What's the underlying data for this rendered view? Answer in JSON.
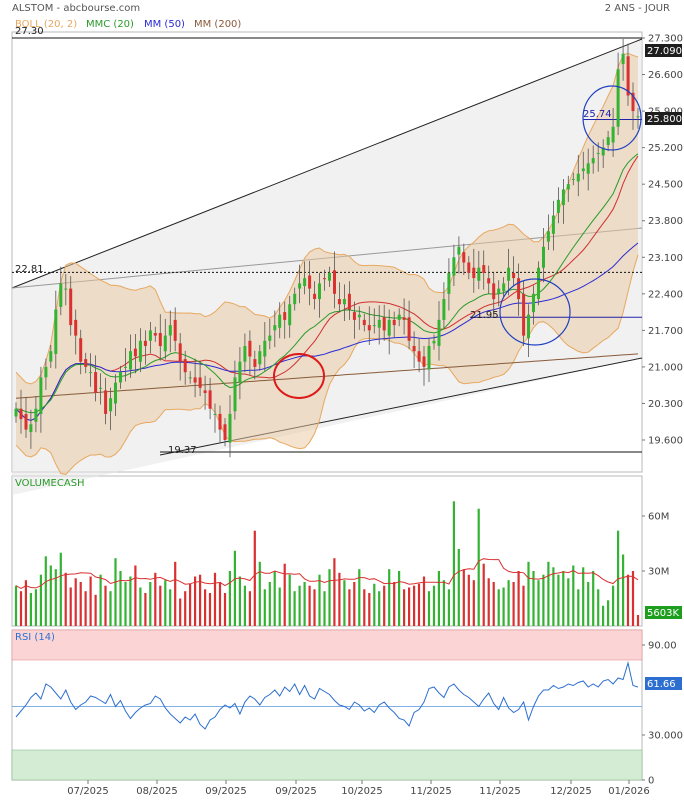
{
  "header": {
    "title": "ALSTOM - abcbourse.com",
    "period": "2 ANS - JOUR"
  },
  "colors": {
    "boll": "#e8a860",
    "mmc20": "#2a9a2a",
    "mm50": "#2a2ad6",
    "mm200": "#8a5a3a",
    "up": "#33b233",
    "down": "#d93030",
    "rsi": "#2d6fd0",
    "price_box": "#1e1e1e",
    "volume_box": "#1e9e1e",
    "rsi_box": "#2d6fd0"
  },
  "legend": [
    {
      "label": "BOLL (20, 2)",
      "color": "#e8a860"
    },
    {
      "label": "MMC (20)",
      "color": "#2a9a2a"
    },
    {
      "label": "MM (50)",
      "color": "#2a2ad6"
    },
    {
      "label": "MM (200)",
      "color": "#8a5a3a"
    }
  ],
  "price_axis_ticks": [
    "27.300",
    "26.600",
    "25.900",
    "25.200",
    "24.500",
    "23.800",
    "23.100",
    "22.400",
    "21.700",
    "21.000",
    "20.300",
    "19.600"
  ],
  "annotations": {
    "high_label": "27.30",
    "mid_label": "22.81",
    "low_label": "19.37",
    "level_a": "25.74",
    "level_b": "21.95",
    "last_price": "27.090",
    "current_price": "25.800"
  },
  "volume": {
    "title": "VOLUMECASH",
    "ticks": [
      "60M",
      "30M"
    ],
    "last": "5603K"
  },
  "rsi": {
    "title": "RSI (14)",
    "ticks": [
      "90.00",
      "30.000",
      "0"
    ],
    "last": "61.66",
    "upper_zone": 80,
    "lower_zone": 20
  },
  "x_axis_labels": [
    "07/2025",
    "08/2025",
    "09/2025",
    "09/2025",
    "10/2025",
    "11/2025",
    "11/2025",
    "12/2025",
    "01/2026"
  ],
  "chart_data": [
    {
      "type": "candlestick",
      "title": "ALSTOM",
      "y_ticks": [
        27.3,
        26.6,
        25.9,
        25.2,
        24.5,
        23.8,
        23.1,
        22.4,
        21.7,
        21.0,
        20.3,
        19.6
      ],
      "ylim": [
        19.35,
        27.5
      ],
      "x_labels": [
        "07/2025",
        "08/2025",
        "09/2025",
        "09/2025",
        "10/2025",
        "11/2025",
        "11/2025",
        "12/2025",
        "01/2026"
      ],
      "reference_lines": {
        "high": 27.3,
        "mid": 22.81,
        "low": 19.37,
        "level_a": 25.74,
        "level_b": 21.95
      },
      "close": [
        20.2,
        20.0,
        19.8,
        19.9,
        20.2,
        20.8,
        21.0,
        21.3,
        22.1,
        22.6,
        22.5,
        21.8,
        21.6,
        21.1,
        21.0,
        20.9,
        20.5,
        20.6,
        20.1,
        20.4,
        20.7,
        20.9,
        21.0,
        21.3,
        21.2,
        21.5,
        21.4,
        21.7,
        21.6,
        21.4,
        21.6,
        21.8,
        21.5,
        21.1,
        20.9,
        20.8,
        20.7,
        20.6,
        20.5,
        20.2,
        20.1,
        19.8,
        19.6,
        20.1,
        20.8,
        21.1,
        21.4,
        21.2,
        21.0,
        21.3,
        21.5,
        21.6,
        21.8,
        22.0,
        21.9,
        22.2,
        22.4,
        22.6,
        22.7,
        22.5,
        22.3,
        22.6,
        22.7,
        22.8,
        22.4,
        22.2,
        22.3,
        22.1,
        21.9,
        22.0,
        21.8,
        21.7,
        21.8,
        21.9,
        21.7,
        21.9,
        21.8,
        22.0,
        21.9,
        21.5,
        21.3,
        21.1,
        21.0,
        21.4,
        21.5,
        21.9,
        22.3,
        22.8,
        23.1,
        23.3,
        23.0,
        22.8,
        22.7,
        22.9,
        22.8,
        22.6,
        22.3,
        22.5,
        22.6,
        22.9,
        22.7,
        22.3,
        21.6,
        22.0,
        22.4,
        22.9,
        23.3,
        23.6,
        23.9,
        24.2,
        24.4,
        24.5,
        24.6,
        24.7,
        24.8,
        24.9,
        25.0,
        25.1,
        25.2,
        25.4,
        25.6,
        26.7,
        27.0,
        26.2,
        25.9,
        25.8
      ],
      "volume_millions": [
        22,
        19,
        25,
        18,
        20,
        28,
        38,
        33,
        31,
        40,
        29,
        21,
        26,
        24,
        19,
        27,
        17,
        28,
        22,
        19,
        37,
        30,
        24,
        27,
        33,
        21,
        18,
        24,
        29,
        22,
        25,
        20,
        35,
        15,
        19,
        23,
        27,
        28,
        20,
        18,
        29,
        24,
        18,
        30,
        41,
        27,
        22,
        19,
        52,
        35,
        20,
        24,
        30,
        21,
        34,
        28,
        19,
        22,
        24,
        22,
        20,
        28,
        19,
        31,
        37,
        29,
        25,
        20,
        24,
        31,
        20,
        18,
        23,
        19,
        22,
        31,
        24,
        30,
        20,
        21,
        22,
        23,
        27,
        19,
        22,
        30,
        25,
        20,
        68,
        42,
        31,
        28,
        25,
        64,
        34,
        26,
        24,
        20,
        21,
        25,
        24,
        30,
        22,
        35,
        30,
        25,
        28,
        35,
        32,
        28,
        30,
        26,
        33,
        20,
        32,
        24,
        30,
        20,
        11,
        14,
        22,
        52,
        39,
        28,
        30,
        6
      ],
      "rsi": [
        42,
        46,
        50,
        55,
        58,
        54,
        64,
        62,
        58,
        54,
        60,
        52,
        47,
        50,
        52,
        56,
        55,
        53,
        51,
        57,
        49,
        53,
        46,
        41,
        45,
        48,
        50,
        51,
        56,
        54,
        48,
        44,
        41,
        38,
        42,
        40,
        44,
        37,
        34,
        40,
        42,
        47,
        50,
        48,
        51,
        44,
        52,
        56,
        54,
        50,
        55,
        57,
        60,
        56,
        62,
        59,
        64,
        57,
        63,
        56,
        54,
        61,
        59,
        57,
        53,
        50,
        49,
        47,
        52,
        50,
        46,
        48,
        45,
        50,
        52,
        48,
        45,
        41,
        40,
        36,
        45,
        47,
        52,
        61,
        62,
        58,
        55,
        62,
        64,
        60,
        57,
        55,
        52,
        49,
        54,
        58,
        51,
        47,
        55,
        48,
        45,
        47,
        52,
        40,
        49,
        56,
        60,
        60,
        63,
        61,
        62,
        64,
        63,
        65,
        66,
        62,
        64,
        62,
        66,
        67,
        64,
        68,
        67,
        78,
        63,
        62
      ]
    }
  ]
}
